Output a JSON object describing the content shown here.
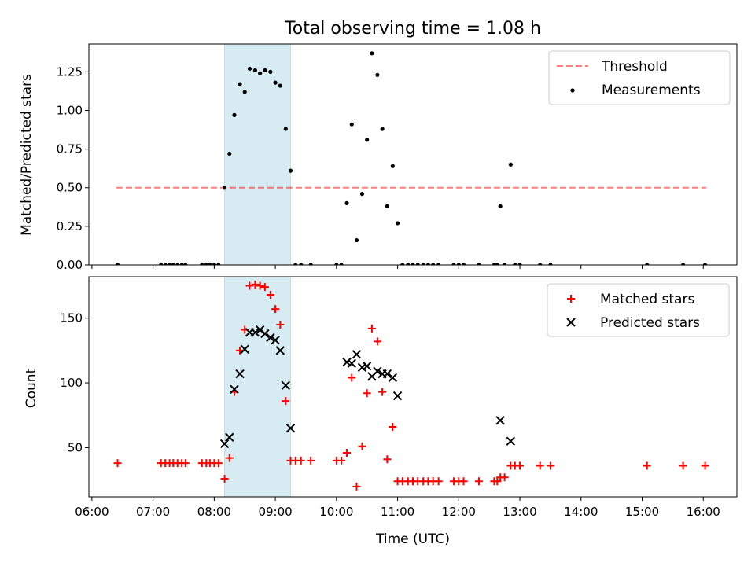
{
  "chart_data": {
    "title": "Total observing time = 1.08 h",
    "xlabel": "Time (UTC)",
    "x_tick_labels": [
      "06:00",
      "07:00",
      "08:00",
      "09:00",
      "10:00",
      "11:00",
      "12:00",
      "13:00",
      "14:00",
      "15:00",
      "16:00"
    ],
    "x_range_hours": [
      5.95,
      16.55
    ],
    "observing_window_hours": [
      8.17,
      9.25
    ],
    "colors": {
      "window": "#add8e6",
      "threshold": "#ff0000",
      "matched": "#ff0000",
      "predicted": "#000000",
      "measurement": "#000000"
    },
    "panels": [
      {
        "type": "scatter",
        "ylabel": "Matched/Predicted stars",
        "ylim": [
          0,
          1.43
        ],
        "y_ticks": [
          0,
          0.25,
          0.5,
          0.75,
          1.0,
          1.25
        ],
        "y_tick_labels": [
          "0.00",
          "0.25",
          "0.50",
          "0.75",
          "1.00",
          "1.25"
        ],
        "threshold": {
          "name": "Threshold",
          "value": 0.5,
          "x_range_hours": [
            6.4,
            16.05
          ],
          "style": "dashed",
          "alpha": 0.5
        },
        "measurements_name": "Measurements",
        "legend": "upper right",
        "measurements": [
          [
            6.42,
            0
          ],
          [
            7.13,
            0
          ],
          [
            7.2,
            0
          ],
          [
            7.27,
            0
          ],
          [
            7.33,
            0
          ],
          [
            7.4,
            0
          ],
          [
            7.47,
            0
          ],
          [
            7.53,
            0
          ],
          [
            7.8,
            0
          ],
          [
            7.87,
            0
          ],
          [
            7.93,
            0
          ],
          [
            8.0,
            0
          ],
          [
            8.07,
            0
          ],
          [
            8.17,
            0.5
          ],
          [
            8.25,
            0.72
          ],
          [
            8.33,
            0.97
          ],
          [
            8.42,
            1.17
          ],
          [
            8.5,
            1.12
          ],
          [
            8.58,
            1.27
          ],
          [
            8.67,
            1.26
          ],
          [
            8.75,
            1.24
          ],
          [
            8.83,
            1.26
          ],
          [
            8.92,
            1.25
          ],
          [
            9.0,
            1.18
          ],
          [
            9.08,
            1.16
          ],
          [
            9.17,
            0.88
          ],
          [
            9.25,
            0.61
          ],
          [
            9.33,
            0
          ],
          [
            9.42,
            0
          ],
          [
            9.58,
            0
          ],
          [
            10.0,
            0
          ],
          [
            10.08,
            0
          ],
          [
            10.17,
            0.4
          ],
          [
            10.25,
            0.91
          ],
          [
            10.33,
            0.16
          ],
          [
            10.42,
            0.46
          ],
          [
            10.5,
            0.81
          ],
          [
            10.58,
            1.37
          ],
          [
            10.67,
            1.23
          ],
          [
            10.75,
            0.88
          ],
          [
            10.83,
            0.38
          ],
          [
            10.92,
            0.64
          ],
          [
            11.0,
            0.27
          ],
          [
            11.08,
            0
          ],
          [
            11.17,
            0
          ],
          [
            11.25,
            0
          ],
          [
            11.33,
            0
          ],
          [
            11.42,
            0
          ],
          [
            11.5,
            0
          ],
          [
            11.58,
            0
          ],
          [
            11.67,
            0
          ],
          [
            11.92,
            0
          ],
          [
            12.0,
            0
          ],
          [
            12.08,
            0
          ],
          [
            12.33,
            0
          ],
          [
            12.58,
            0
          ],
          [
            12.63,
            0
          ],
          [
            12.75,
            0
          ],
          [
            12.92,
            0
          ],
          [
            13.0,
            0
          ],
          [
            12.68,
            0.38
          ],
          [
            12.85,
            0.65
          ],
          [
            13.33,
            0
          ],
          [
            13.5,
            0
          ],
          [
            15.08,
            0
          ],
          [
            15.67,
            0
          ],
          [
            16.03,
            0
          ]
        ]
      },
      {
        "type": "scatter",
        "ylabel": "Count",
        "ylim": [
          12,
          182
        ],
        "y_ticks": [
          50,
          100,
          150
        ],
        "y_tick_labels": [
          "50",
          "100",
          "150"
        ],
        "legend": "upper right",
        "series": [
          {
            "name": "Matched stars",
            "marker": "plus",
            "points": [
              [
                6.42,
                38
              ],
              [
                7.13,
                38
              ],
              [
                7.2,
                38
              ],
              [
                7.27,
                38
              ],
              [
                7.33,
                38
              ],
              [
                7.4,
                38
              ],
              [
                7.47,
                38
              ],
              [
                7.53,
                38
              ],
              [
                7.8,
                38
              ],
              [
                7.87,
                38
              ],
              [
                7.93,
                38
              ],
              [
                8.0,
                38
              ],
              [
                8.07,
                38
              ],
              [
                8.17,
                26
              ],
              [
                8.25,
                42
              ],
              [
                8.33,
                93
              ],
              [
                8.42,
                125
              ],
              [
                8.5,
                141
              ],
              [
                8.58,
                175
              ],
              [
                8.67,
                176
              ],
              [
                8.75,
                175
              ],
              [
                8.83,
                174
              ],
              [
                8.92,
                168
              ],
              [
                9.0,
                157
              ],
              [
                9.08,
                145
              ],
              [
                9.17,
                86
              ],
              [
                9.25,
                40
              ],
              [
                9.33,
                40
              ],
              [
                9.42,
                40
              ],
              [
                9.58,
                40
              ],
              [
                10.0,
                40
              ],
              [
                10.08,
                40
              ],
              [
                10.17,
                46
              ],
              [
                10.25,
                104
              ],
              [
                10.33,
                20
              ],
              [
                10.42,
                51
              ],
              [
                10.5,
                92
              ],
              [
                10.58,
                142
              ],
              [
                10.67,
                132
              ],
              [
                10.75,
                93
              ],
              [
                10.83,
                41
              ],
              [
                10.92,
                66
              ],
              [
                11.0,
                24
              ],
              [
                11.08,
                24
              ],
              [
                11.17,
                24
              ],
              [
                11.25,
                24
              ],
              [
                11.33,
                24
              ],
              [
                11.42,
                24
              ],
              [
                11.5,
                24
              ],
              [
                11.58,
                24
              ],
              [
                11.67,
                24
              ],
              [
                11.92,
                24
              ],
              [
                12.0,
                24
              ],
              [
                12.08,
                24
              ],
              [
                12.33,
                24
              ],
              [
                12.58,
                24
              ],
              [
                12.63,
                24
              ],
              [
                12.68,
                27
              ],
              [
                12.75,
                27
              ],
              [
                12.85,
                36
              ],
              [
                12.92,
                36
              ],
              [
                13.0,
                36
              ],
              [
                13.33,
                36
              ],
              [
                13.5,
                36
              ],
              [
                15.08,
                36
              ],
              [
                15.67,
                36
              ],
              [
                16.03,
                36
              ]
            ]
          },
          {
            "name": "Predicted stars",
            "marker": "x",
            "points": [
              [
                8.17,
                53
              ],
              [
                8.25,
                58
              ],
              [
                8.33,
                95
              ],
              [
                8.42,
                107
              ],
              [
                8.5,
                126
              ],
              [
                8.58,
                139
              ],
              [
                8.67,
                139
              ],
              [
                8.75,
                141
              ],
              [
                8.83,
                138
              ],
              [
                8.92,
                135
              ],
              [
                9.0,
                133
              ],
              [
                9.08,
                125
              ],
              [
                9.17,
                98
              ],
              [
                9.25,
                65
              ],
              [
                10.17,
                116
              ],
              [
                10.25,
                115
              ],
              [
                10.33,
                122
              ],
              [
                10.42,
                112
              ],
              [
                10.5,
                113
              ],
              [
                10.58,
                105
              ],
              [
                10.67,
                109
              ],
              [
                10.75,
                107
              ],
              [
                10.83,
                107
              ],
              [
                10.92,
                104
              ],
              [
                11.0,
                90
              ],
              [
                12.68,
                71
              ],
              [
                12.85,
                55
              ]
            ]
          }
        ]
      }
    ]
  }
}
